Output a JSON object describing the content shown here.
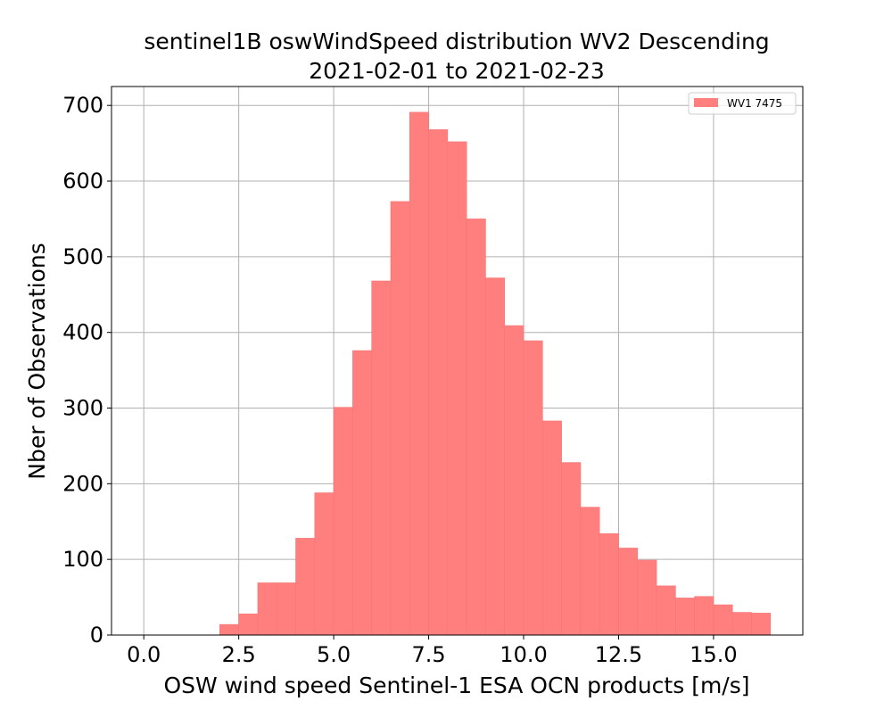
{
  "chart_data": {
    "type": "bar",
    "title": "sentinel1B oswWindSpeed distribution WV2 Descending",
    "subtitle": "2021-02-01 to 2021-02-23",
    "xlabel": "OSW wind speed Sentinel-1 ESA OCN products [m/s]",
    "ylabel": "Nber of Observations",
    "xlim": [
      -0.85,
      17.35
    ],
    "ylim": [
      0,
      725
    ],
    "xticks": [
      0.0,
      2.5,
      5.0,
      7.5,
      10.0,
      12.5,
      15.0
    ],
    "xtick_labels": [
      "0.0",
      "2.5",
      "5.0",
      "7.5",
      "10.0",
      "12.5",
      "15.0"
    ],
    "yticks": [
      0,
      100,
      200,
      300,
      400,
      500,
      600,
      700
    ],
    "ytick_labels": [
      "0",
      "100",
      "200",
      "300",
      "400",
      "500",
      "600",
      "700"
    ],
    "grid": true,
    "legend_position": "top-right",
    "series": [
      {
        "name": "WV1 7475",
        "color": "#ff7f7f",
        "bin_edges": [
          2.0,
          2.5,
          3.0,
          3.5,
          4.0,
          4.5,
          5.0,
          5.5,
          6.0,
          6.5,
          7.0,
          7.5,
          8.0,
          8.5,
          9.0,
          9.5,
          10.0,
          10.5,
          11.0,
          11.5,
          12.0,
          12.5,
          13.0,
          13.5,
          14.0,
          14.5,
          15.0,
          15.5,
          16.0,
          16.5
        ],
        "values": [
          14,
          28,
          69,
          69,
          128,
          188,
          301,
          376,
          468,
          573,
          691,
          668,
          652,
          550,
          472,
          409,
          389,
          283,
          228,
          169,
          134,
          115,
          99,
          65,
          49,
          51,
          40,
          30,
          29
        ]
      }
    ]
  }
}
